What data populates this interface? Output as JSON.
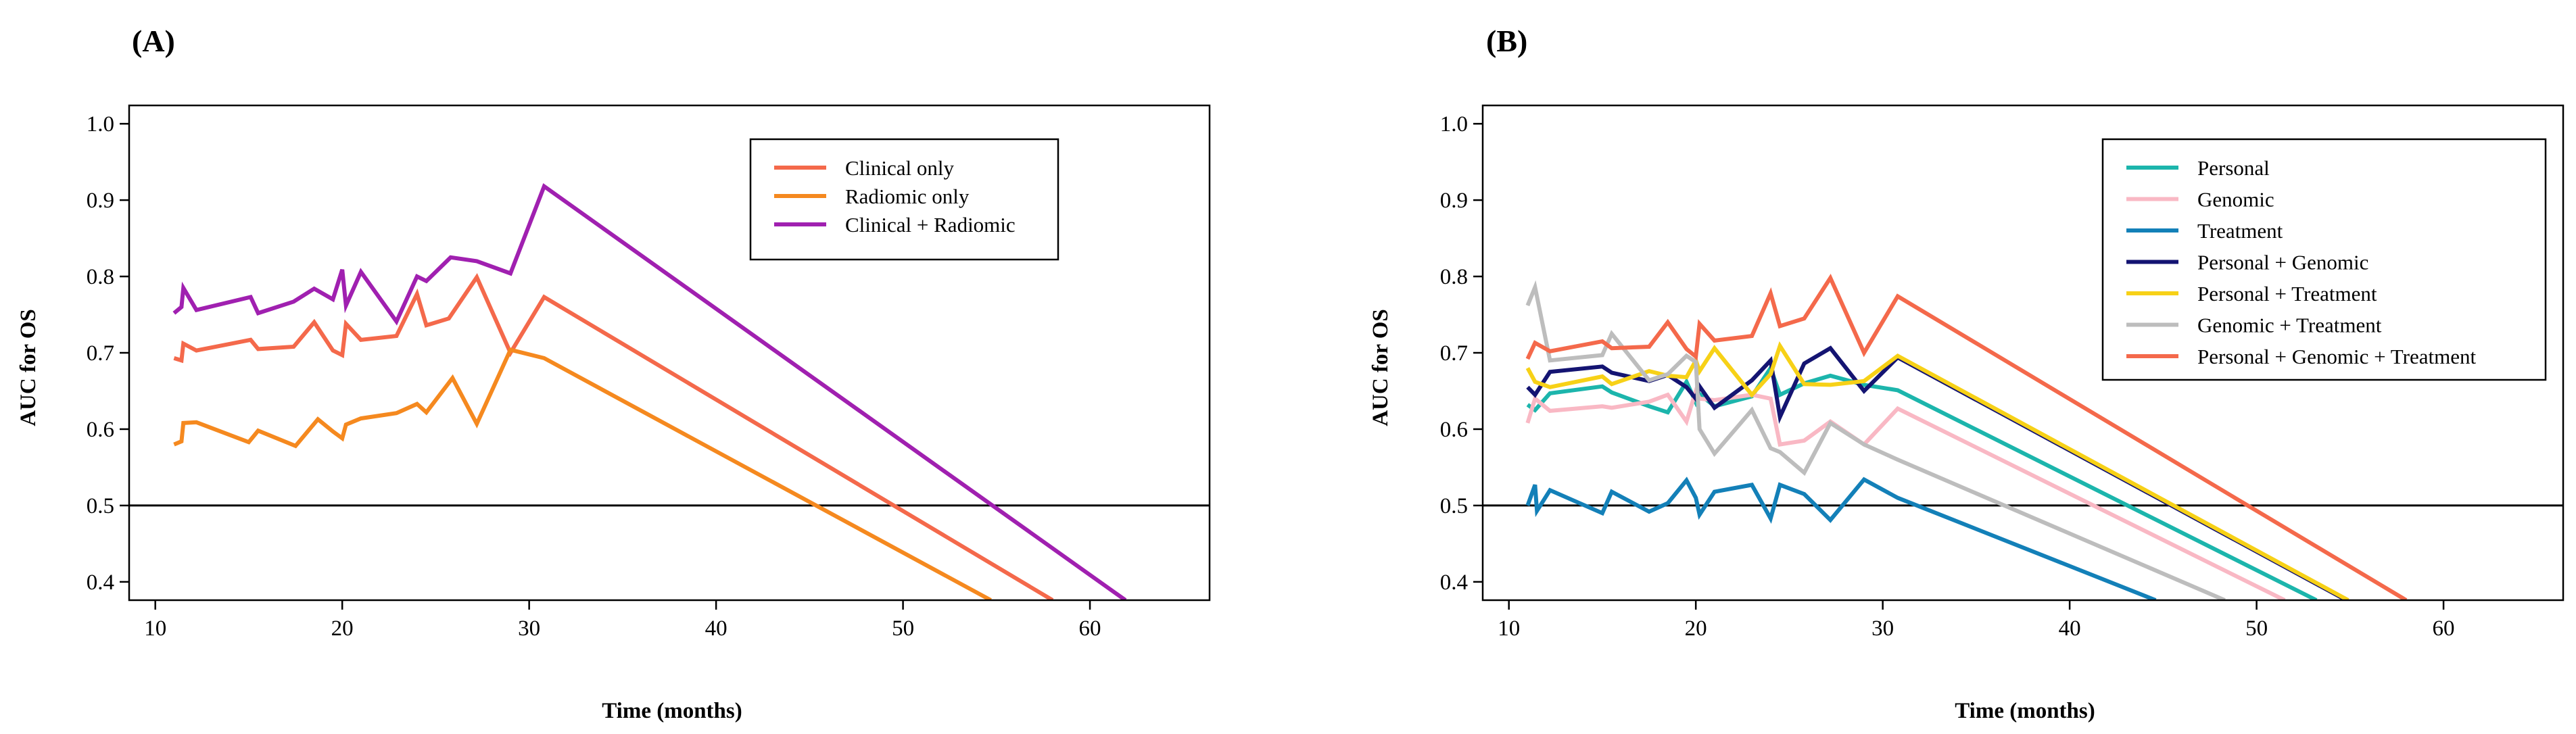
{
  "chart_data": [
    {
      "type": "line",
      "panel_label": "(A)",
      "xlabel": "Time (months)",
      "ylabel": "AUC for OS",
      "xlim": [
        8.6,
        66.4
      ],
      "ylim": [
        0.376,
        1.024
      ],
      "xticks": [
        10,
        20,
        30,
        40,
        50,
        60
      ],
      "yticks": [
        0.4,
        0.5,
        0.6,
        0.7,
        0.8,
        0.9,
        1.0
      ],
      "ytick_labels": [
        "0.4",
        "0.5",
        "0.6",
        "0.7",
        "0.8",
        "0.9",
        "1.0"
      ],
      "reference_line": 0.5,
      "grid": false,
      "legend_position": "top-right",
      "series": [
        {
          "name": "Clinical only",
          "color": "#F4694B",
          "x": [
            11.0,
            11.4,
            11.5,
            12.2,
            15.1,
            15.5,
            17.4,
            18.5,
            19.5,
            20.0,
            20.2,
            21.0,
            22.9,
            24.0,
            24.5,
            25.7,
            27.2,
            29.0,
            30.8,
            58.0
          ],
          "y": [
            0.693,
            0.69,
            0.712,
            0.703,
            0.717,
            0.705,
            0.708,
            0.74,
            0.703,
            0.697,
            0.738,
            0.717,
            0.722,
            0.777,
            0.736,
            0.745,
            0.799,
            0.7,
            0.773,
            0.376
          ]
        },
        {
          "name": "Radiomic only",
          "color": "#F5891F",
          "x": [
            11.0,
            11.4,
            11.5,
            12.2,
            15.0,
            15.5,
            17.5,
            18.7,
            19.5,
            20.0,
            20.2,
            21.0,
            22.9,
            24.0,
            24.5,
            25.9,
            27.2,
            29.0,
            30.8,
            54.7
          ],
          "y": [
            0.58,
            0.584,
            0.608,
            0.609,
            0.583,
            0.598,
            0.578,
            0.613,
            0.597,
            0.588,
            0.606,
            0.614,
            0.621,
            0.633,
            0.622,
            0.667,
            0.607,
            0.704,
            0.693,
            0.376
          ]
        },
        {
          "name": "Clinical + Radiomic",
          "color": "#A020B0",
          "x": [
            11.0,
            11.4,
            11.5,
            12.2,
            15.1,
            15.5,
            17.4,
            18.5,
            19.5,
            20.0,
            20.2,
            21.0,
            22.9,
            24.0,
            24.5,
            25.8,
            27.2,
            29.0,
            30.8,
            61.9
          ],
          "y": [
            0.752,
            0.76,
            0.785,
            0.756,
            0.773,
            0.752,
            0.767,
            0.784,
            0.77,
            0.809,
            0.762,
            0.806,
            0.741,
            0.8,
            0.794,
            0.825,
            0.82,
            0.804,
            0.918,
            0.376
          ]
        }
      ]
    },
    {
      "type": "line",
      "panel_label": "(B)",
      "xlabel": "Time (months)",
      "ylabel": "AUC for OS",
      "xlim": [
        8.6,
        66.4
      ],
      "ylim": [
        0.376,
        1.024
      ],
      "xticks": [
        10,
        20,
        30,
        40,
        50,
        60
      ],
      "yticks": [
        0.4,
        0.5,
        0.6,
        0.7,
        0.8,
        0.9,
        1.0
      ],
      "ytick_labels": [
        "0.4",
        "0.5",
        "0.6",
        "0.7",
        "0.8",
        "0.9",
        "1.0"
      ],
      "reference_line": 0.5,
      "grid": false,
      "legend_position": "top-right",
      "series": [
        {
          "name": "Personal",
          "color": "#1CB5AC",
          "x": [
            11.0,
            11.4,
            12.2,
            15.0,
            15.5,
            17.5,
            18.5,
            19.5,
            20.0,
            20.2,
            21.0,
            23.0,
            24.0,
            24.5,
            25.8,
            27.2,
            29.0,
            30.8,
            53.2
          ],
          "y": [
            0.632,
            0.625,
            0.647,
            0.656,
            0.648,
            0.63,
            0.622,
            0.662,
            0.635,
            0.646,
            0.63,
            0.643,
            0.68,
            0.645,
            0.66,
            0.67,
            0.658,
            0.651,
            0.376
          ]
        },
        {
          "name": "Genomic",
          "color": "#F9B8C4",
          "x": [
            11.0,
            11.4,
            12.2,
            15.0,
            15.5,
            17.5,
            18.5,
            19.5,
            20.0,
            20.2,
            21.0,
            23.0,
            24.0,
            24.5,
            25.8,
            27.2,
            29.0,
            30.8,
            51.5
          ],
          "y": [
            0.608,
            0.64,
            0.624,
            0.63,
            0.628,
            0.636,
            0.645,
            0.61,
            0.65,
            0.64,
            0.638,
            0.645,
            0.64,
            0.58,
            0.585,
            0.61,
            0.58,
            0.627,
            0.376
          ]
        },
        {
          "name": "Treatment",
          "color": "#1380B8",
          "x": [
            11.0,
            11.4,
            11.5,
            12.2,
            15.0,
            15.5,
            17.5,
            18.5,
            19.5,
            20.0,
            20.2,
            21.0,
            23.0,
            24.0,
            24.5,
            25.8,
            27.2,
            29.0,
            30.8,
            44.6
          ],
          "y": [
            0.5,
            0.527,
            0.493,
            0.52,
            0.49,
            0.518,
            0.492,
            0.503,
            0.533,
            0.51,
            0.488,
            0.518,
            0.527,
            0.483,
            0.527,
            0.515,
            0.481,
            0.534,
            0.51,
            0.376
          ]
        },
        {
          "name": "Personal + Genomic",
          "color": "#141472",
          "x": [
            11.0,
            11.4,
            12.2,
            15.0,
            15.5,
            17.5,
            18.5,
            19.5,
            20.0,
            20.2,
            21.0,
            23.0,
            24.0,
            24.5,
            25.8,
            27.2,
            29.0,
            30.8,
            54.8
          ],
          "y": [
            0.655,
            0.645,
            0.675,
            0.682,
            0.674,
            0.663,
            0.671,
            0.655,
            0.64,
            0.656,
            0.628,
            0.664,
            0.69,
            0.616,
            0.686,
            0.706,
            0.65,
            0.694,
            0.376
          ]
        },
        {
          "name": "Personal + Treatment",
          "color": "#F7D117",
          "x": [
            11.0,
            11.4,
            12.2,
            15.0,
            15.5,
            17.5,
            18.5,
            19.5,
            20.0,
            20.2,
            21.0,
            23.0,
            24.0,
            24.5,
            25.8,
            27.2,
            29.0,
            30.8,
            54.9
          ],
          "y": [
            0.68,
            0.662,
            0.655,
            0.669,
            0.659,
            0.676,
            0.67,
            0.668,
            0.69,
            0.676,
            0.706,
            0.645,
            0.672,
            0.709,
            0.659,
            0.658,
            0.663,
            0.696,
            0.376
          ]
        },
        {
          "name": "Genomic + Treatment",
          "color": "#BDBDBD",
          "x": [
            11.0,
            11.4,
            12.2,
            15.0,
            15.5,
            17.5,
            18.5,
            19.5,
            20.0,
            20.2,
            21.0,
            23.0,
            24.0,
            24.5,
            25.8,
            27.2,
            29.0,
            30.8,
            48.3
          ],
          "y": [
            0.762,
            0.786,
            0.69,
            0.697,
            0.725,
            0.664,
            0.672,
            0.696,
            0.688,
            0.6,
            0.568,
            0.625,
            0.575,
            0.57,
            0.543,
            0.608,
            0.58,
            0.56,
            0.376
          ]
        },
        {
          "name": "Personal + Genomic + Treatment",
          "color": "#F4694B",
          "x": [
            11.0,
            11.4,
            12.2,
            15.0,
            15.5,
            17.5,
            18.5,
            19.5,
            20.0,
            20.2,
            21.0,
            23.0,
            24.0,
            24.5,
            25.8,
            27.2,
            29.0,
            30.8,
            58.0
          ],
          "y": [
            0.692,
            0.713,
            0.702,
            0.715,
            0.706,
            0.708,
            0.74,
            0.705,
            0.695,
            0.738,
            0.716,
            0.722,
            0.778,
            0.735,
            0.745,
            0.798,
            0.7,
            0.774,
            0.376
          ]
        }
      ]
    }
  ]
}
